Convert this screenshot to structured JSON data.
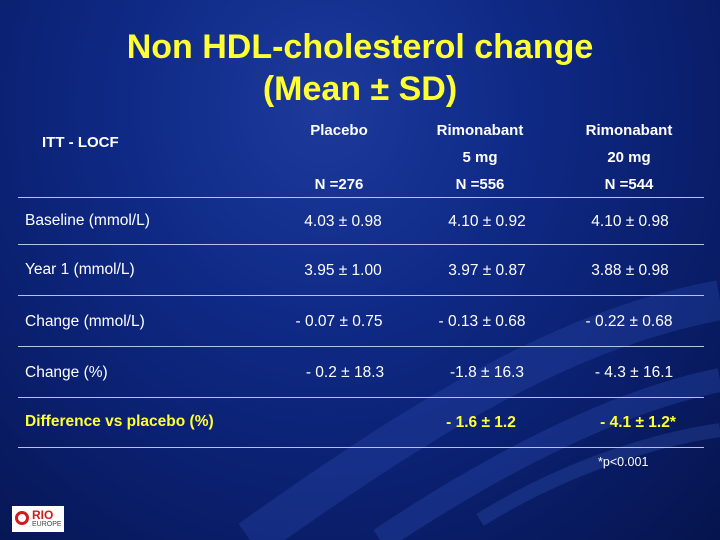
{
  "title": {
    "line1": "Non HDL-cholesterol change",
    "line2": "(Mean ± SD)"
  },
  "table": {
    "row_header": "ITT - LOCF",
    "columns": [
      {
        "line1": "Placebo",
        "line2": "",
        "n": "N =276"
      },
      {
        "line1": "Rimonabant",
        "line2": "5 mg",
        "n": "N =556"
      },
      {
        "line1": "Rimonabant",
        "line2": "20 mg",
        "n": "N =544"
      }
    ],
    "rows": [
      {
        "label": "Baseline (mmol/L)",
        "values": [
          "4.03 ± 0.98",
          "4.10 ± 0.92",
          "4.10 ± 0.98"
        ]
      },
      {
        "label": "Year 1 (mmol/L)",
        "values": [
          "3.95 ± 1.00",
          "3.97 ± 0.87",
          "3.88 ± 0.98"
        ]
      },
      {
        "label": "Change (mmol/L)",
        "values": [
          "- 0.07 ± 0.75",
          "- 0.13 ± 0.68",
          "- 0.22 ± 0.68"
        ]
      },
      {
        "label": "Change (%)",
        "values": [
          "- 0.2 ± 18.3",
          "-1.8 ± 16.3",
          "- 4.3 ± 16.1"
        ]
      },
      {
        "label": "Difference vs placebo (%)",
        "values": [
          "",
          "- 1.6 ± 1.2",
          "- 4.1 ± 1.2*"
        ]
      }
    ]
  },
  "footnote": "*p<0.001",
  "logo": {
    "top": "RIO",
    "bottom": "EUROPE"
  },
  "colors": {
    "title": "#ffff33",
    "highlight_row": "#ffff33",
    "background": "#0f2a86"
  }
}
